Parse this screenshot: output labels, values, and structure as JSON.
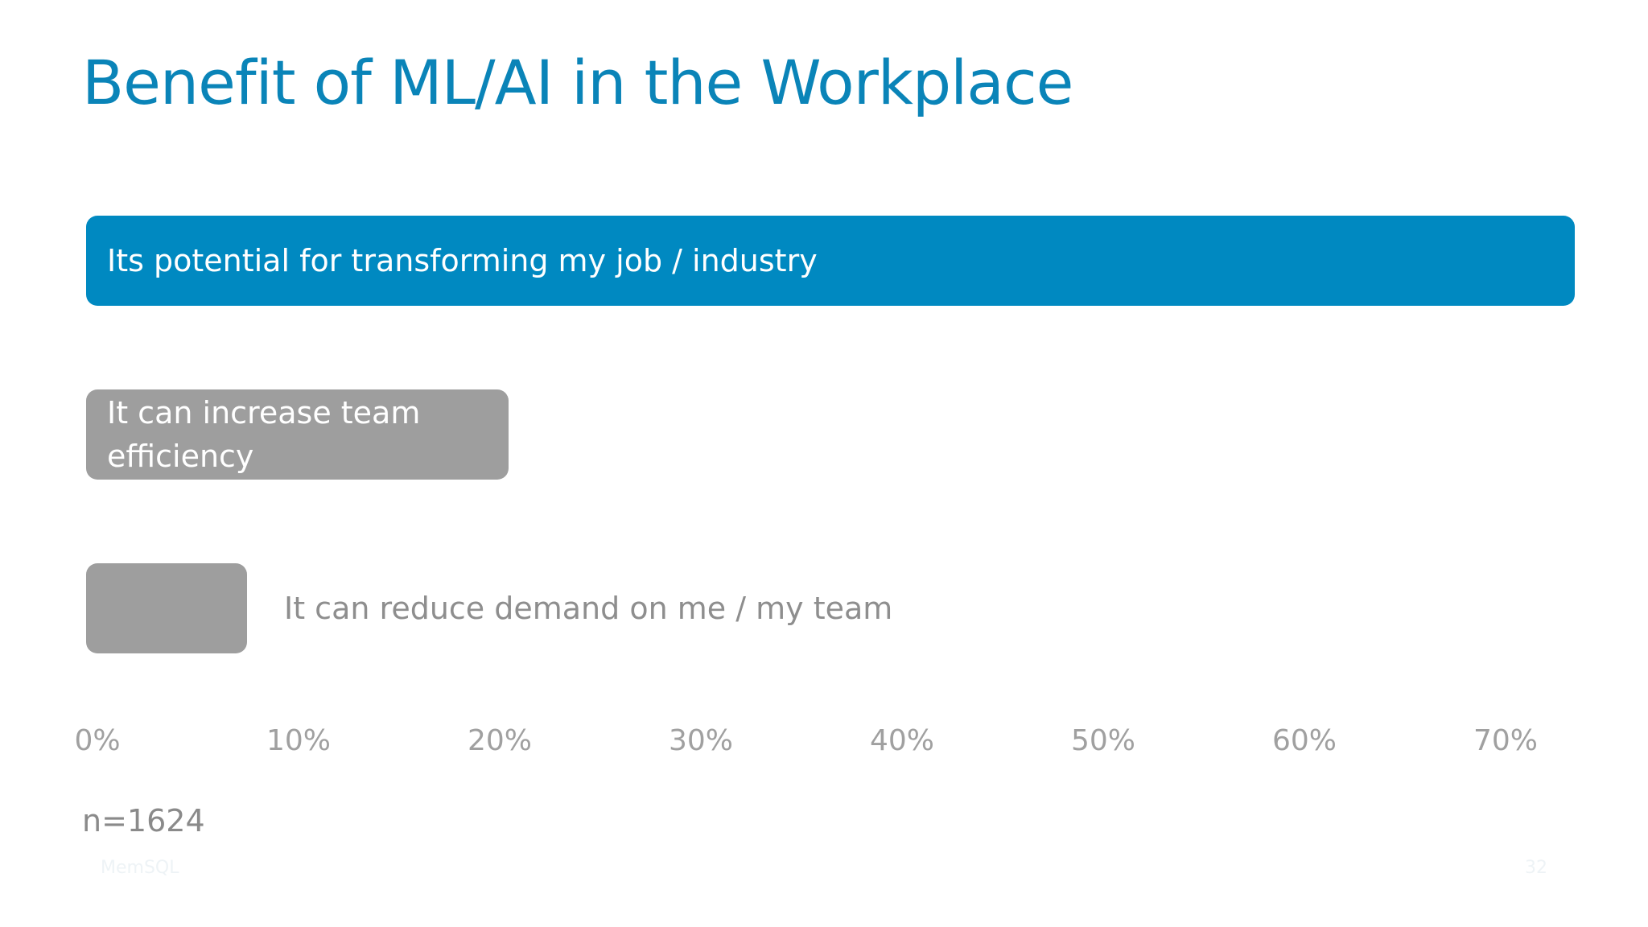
{
  "chart_data": {
    "type": "barh",
    "title": "Benefit of ML/AI in the Workplace",
    "categories": [
      "Its potential for transforming my job / industry",
      "It can increase team efficiency",
      "It can reduce demand on me / my team"
    ],
    "values": [
      74,
      21,
      8
    ],
    "colors": [
      "#0089c1",
      "#9e9e9e",
      "#9e9e9e"
    ],
    "xlim": [
      0,
      75
    ],
    "xticks": [
      {
        "value": 0,
        "label": "0%"
      },
      {
        "value": 10,
        "label": "10%"
      },
      {
        "value": 20,
        "label": "20%"
      },
      {
        "value": 30,
        "label": "30%"
      },
      {
        "value": 40,
        "label": "40%"
      },
      {
        "value": 50,
        "label": "50%"
      },
      {
        "value": 60,
        "label": "60%"
      },
      {
        "value": 70,
        "label": "70%"
      }
    ],
    "grid": false,
    "note": "n=1624"
  },
  "footer": {
    "brand": "MemSQL",
    "page_number": "32"
  }
}
